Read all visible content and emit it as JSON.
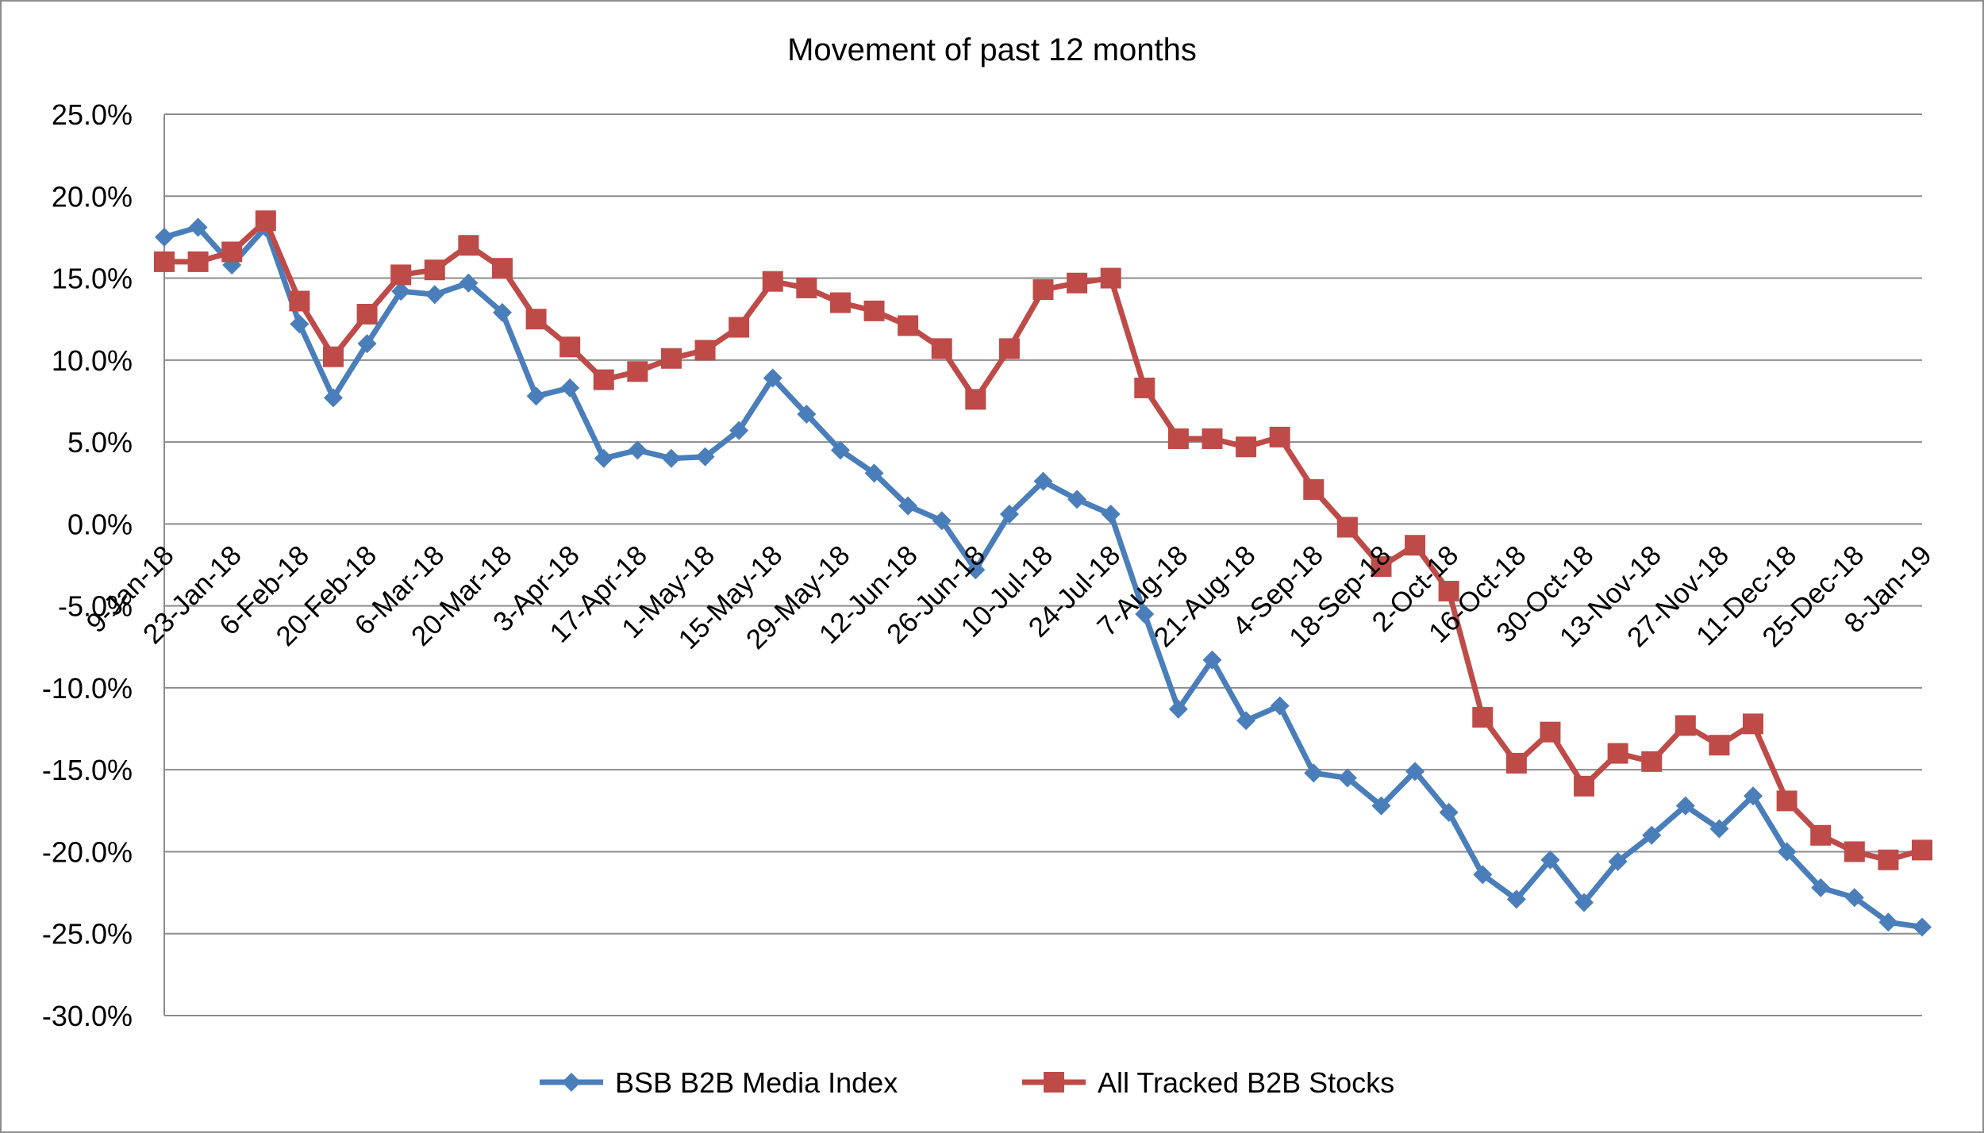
{
  "chart_data": {
    "type": "line",
    "title": "Movement of past 12 months",
    "xlabel": "",
    "ylabel": "",
    "ylim": [
      -0.3,
      0.25
    ],
    "y_ticks": [
      0.25,
      0.2,
      0.15,
      0.1,
      0.05,
      0.0,
      -0.05,
      -0.1,
      -0.15,
      -0.2,
      -0.25,
      -0.3
    ],
    "y_tick_labels": [
      "25.0%",
      "20.0%",
      "15.0%",
      "10.0%",
      "5.0%",
      "0.0%",
      "-5.0%",
      "-10.0%",
      "-15.0%",
      "-20.0%",
      "-25.0%",
      "-30.0%"
    ],
    "x_tick_labels": [
      "9-Jan-18",
      "23-Jan-18",
      "6-Feb-18",
      "20-Feb-18",
      "6-Mar-18",
      "20-Mar-18",
      "3-Apr-18",
      "17-Apr-18",
      "1-May-18",
      "15-May-18",
      "29-May-18",
      "12-Jun-18",
      "26-Jun-18",
      "10-Jul-18",
      "24-Jul-18",
      "7-Aug-18",
      "21-Aug-18",
      "4-Sep-18",
      "18-Sep-18",
      "2-Oct-18",
      "16-Oct-18",
      "30-Oct-18",
      "13-Nov-18",
      "27-Nov-18",
      "11-Dec-18",
      "25-Dec-18",
      "8-Jan-19"
    ],
    "grid": true,
    "legend": "bottom",
    "series": [
      {
        "name": "BSB B2B Media Index",
        "color": "#4a7ebb",
        "marker": "diamond",
        "values": [
          0.175,
          0.181,
          0.158,
          0.181,
          0.122,
          0.077,
          0.11,
          0.142,
          0.14,
          0.147,
          0.129,
          0.078,
          0.083,
          0.04,
          0.045,
          0.04,
          0.041,
          0.057,
          0.089,
          0.067,
          0.045,
          0.031,
          0.011,
          0.002,
          -0.028,
          0.006,
          0.026,
          0.015,
          0.006,
          -0.055,
          -0.113,
          -0.083,
          -0.12,
          -0.111,
          -0.152,
          -0.155,
          -0.172,
          -0.151,
          -0.176,
          -0.214,
          -0.229,
          -0.205,
          -0.231,
          -0.206,
          -0.19,
          -0.172,
          -0.186,
          -0.166,
          -0.2,
          -0.222,
          -0.228,
          -0.243,
          -0.246
        ]
      },
      {
        "name": "All Tracked B2B Stocks",
        "color": "#be4b48",
        "marker": "square",
        "values": [
          0.16,
          0.16,
          0.166,
          0.185,
          0.136,
          0.102,
          0.128,
          0.152,
          0.155,
          0.17,
          0.156,
          0.125,
          0.108,
          0.088,
          0.093,
          0.101,
          0.106,
          0.12,
          0.148,
          0.144,
          0.135,
          0.13,
          0.121,
          0.107,
          0.076,
          0.107,
          0.143,
          0.147,
          0.15,
          0.083,
          0.052,
          0.052,
          0.047,
          0.053,
          0.021,
          -0.002,
          -0.026,
          -0.013,
          -0.041,
          -0.118,
          -0.146,
          -0.127,
          -0.16,
          -0.14,
          -0.145,
          -0.123,
          -0.135,
          -0.122,
          -0.169,
          -0.19,
          -0.2,
          -0.205,
          -0.199
        ]
      }
    ]
  }
}
